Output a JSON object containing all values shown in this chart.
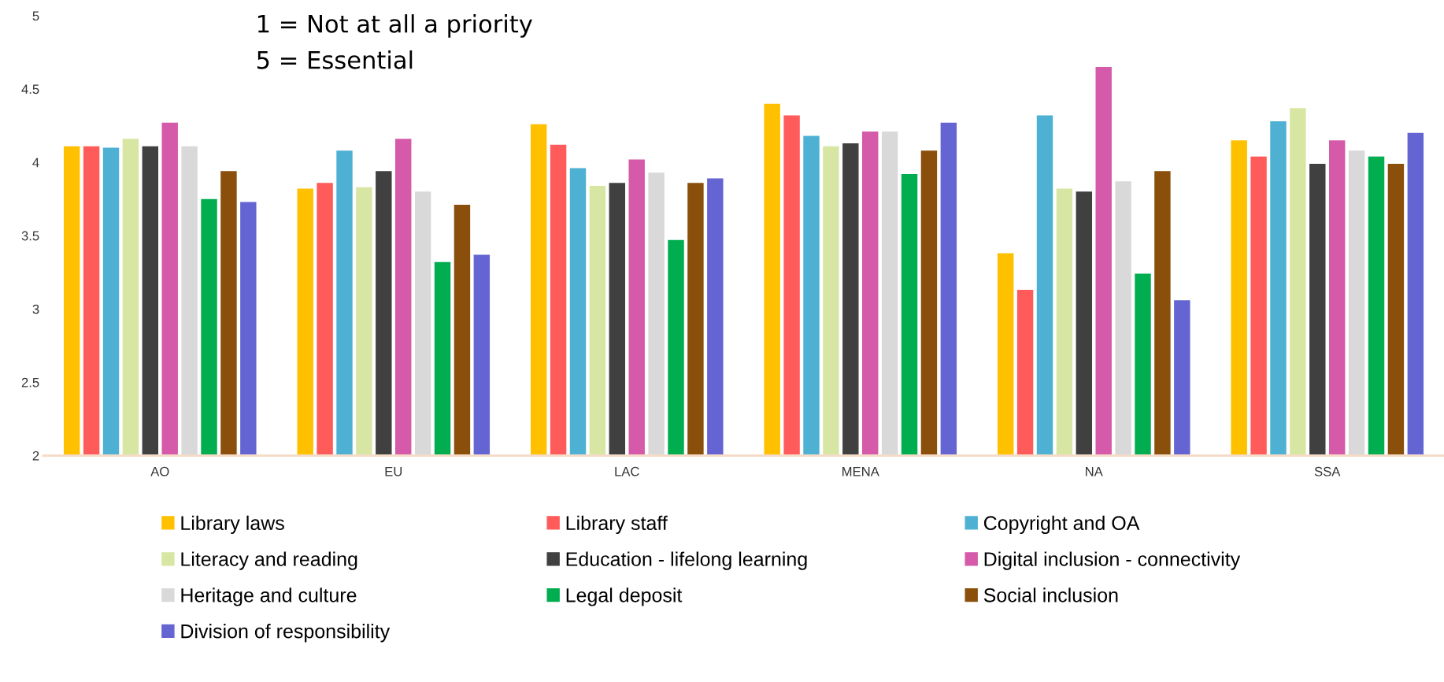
{
  "chart_data": {
    "type": "bar",
    "categories": [
      "AO",
      "EU",
      "LAC",
      "MENA",
      "NA",
      "SSA"
    ],
    "series": [
      {
        "name": "Library laws",
        "color": "#ffc000",
        "values": [
          4.11,
          3.82,
          4.26,
          4.4,
          3.38,
          4.15
        ]
      },
      {
        "name": "Library staff",
        "color": "#ff5b5b",
        "values": [
          4.11,
          3.86,
          4.12,
          4.32,
          3.13,
          4.04
        ]
      },
      {
        "name": "Copyright and OA",
        "color": "#4eb1d3",
        "values": [
          4.1,
          4.08,
          3.96,
          4.18,
          4.32,
          4.28
        ]
      },
      {
        "name": "Literacy and reading",
        "color": "#d8e6a3",
        "values": [
          4.16,
          3.83,
          3.84,
          4.11,
          3.82,
          4.37
        ]
      },
      {
        "name": "Education - lifelong learning",
        "color": "#404040",
        "values": [
          4.11,
          3.94,
          3.86,
          4.13,
          3.8,
          3.99
        ]
      },
      {
        "name": "Digital inclusion - connectivity",
        "color": "#d55aaa",
        "values": [
          4.27,
          4.16,
          4.02,
          4.21,
          4.65,
          4.15
        ]
      },
      {
        "name": "Heritage and culture",
        "color": "#d9d9d9",
        "values": [
          4.11,
          3.8,
          3.93,
          4.21,
          3.87,
          4.08
        ]
      },
      {
        "name": "Legal deposit",
        "color": "#00ad4f",
        "values": [
          3.75,
          3.32,
          3.47,
          3.92,
          3.24,
          4.04
        ]
      },
      {
        "name": "Social inclusion",
        "color": "#8b4f0c",
        "values": [
          3.94,
          3.71,
          3.86,
          4.08,
          3.94,
          3.99
        ]
      },
      {
        "name": "Division of responsibility",
        "color": "#6464d2",
        "values": [
          3.73,
          3.37,
          3.89,
          4.27,
          3.06,
          4.2
        ]
      }
    ],
    "ylim": [
      2,
      5
    ],
    "yticks": [
      2,
      2.5,
      3,
      3.5,
      4,
      4.5,
      5
    ],
    "annotations": [
      "1 = Not at all a priority",
      "5 = Essential"
    ],
    "legend": "bottom",
    "grid": false
  }
}
